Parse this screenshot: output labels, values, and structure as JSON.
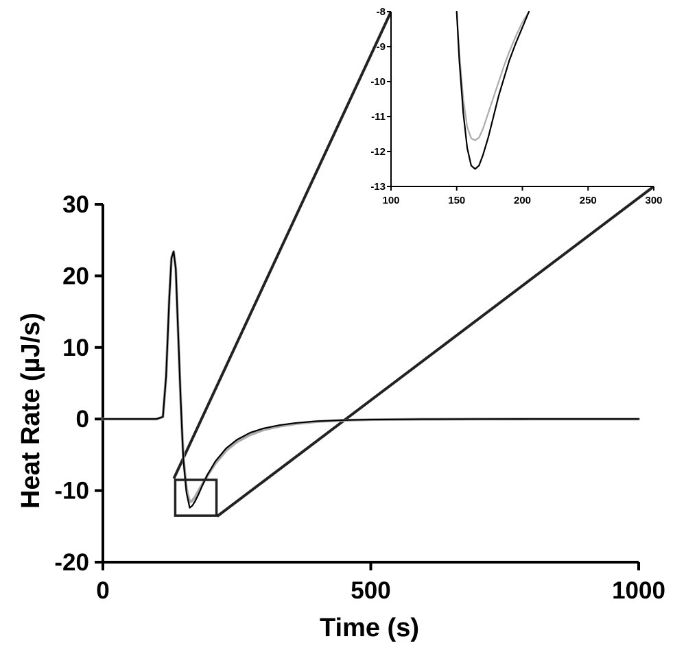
{
  "chart_data": [
    {
      "id": "main",
      "type": "line",
      "title": "",
      "xlabel": "Time (s)",
      "ylabel": "Heat Rate (µJ/s)",
      "xlim": [
        0,
        1000
      ],
      "ylim": [
        -20,
        30
      ],
      "xticks": [
        0,
        500,
        1000
      ],
      "xtick_labels": [
        "0",
        "500",
        "1000"
      ],
      "yticks": [
        -20,
        -10,
        0,
        10,
        20,
        30
      ],
      "ytick_labels": [
        "-20",
        "-10",
        "0",
        "10",
        "20",
        "30"
      ],
      "grid": false,
      "legend": "none",
      "series": [
        {
          "name": "black trace",
          "color": "#000000",
          "x": [
            0,
            100,
            112,
            118,
            124,
            128,
            132,
            136,
            140,
            145,
            150,
            156,
            162,
            167,
            172,
            178,
            185,
            195,
            210,
            230,
            250,
            275,
            300,
            330,
            360,
            400,
            450,
            500,
            600,
            700,
            800,
            900,
            1000
          ],
          "y": [
            0,
            0,
            0.3,
            6,
            17,
            22.5,
            23.4,
            21,
            13,
            3,
            -5.5,
            -10.3,
            -12.4,
            -12.1,
            -11.5,
            -10.6,
            -9.4,
            -7.8,
            -5.9,
            -4.1,
            -2.9,
            -1.9,
            -1.3,
            -0.85,
            -0.55,
            -0.3,
            -0.15,
            -0.08,
            -0.03,
            -0.01,
            0,
            0,
            0
          ]
        },
        {
          "name": "grey trace",
          "color": "#aaaaaa",
          "x": [
            0,
            100,
            112,
            118,
            124,
            128,
            132,
            136,
            140,
            145,
            150,
            156,
            162,
            167,
            172,
            178,
            185,
            195,
            210,
            230,
            250,
            275,
            300,
            330,
            360,
            400,
            450,
            500,
            600,
            700,
            800,
            900,
            1000
          ],
          "y": [
            0,
            0,
            0.3,
            6,
            17,
            22.5,
            23.4,
            21,
            13,
            3,
            -5.3,
            -9.8,
            -11.6,
            -11.4,
            -10.9,
            -10.1,
            -9.2,
            -7.9,
            -6.2,
            -4.4,
            -3.2,
            -2.2,
            -1.5,
            -1.0,
            -0.65,
            -0.35,
            -0.18,
            -0.09,
            -0.03,
            -0.01,
            0,
            0,
            0
          ]
        }
      ],
      "zoom_region": {
        "x": [
          135,
          212
        ],
        "y": [
          -13.5,
          -8.5
        ]
      }
    },
    {
      "id": "inset",
      "type": "line",
      "title": "",
      "xlabel": "",
      "ylabel": "",
      "xlim": [
        100,
        300
      ],
      "ylim": [
        -13,
        -8
      ],
      "xticks": [
        100,
        150,
        200,
        250,
        300
      ],
      "xtick_labels": [
        "100",
        "150",
        "200",
        "250",
        "300"
      ],
      "yticks": [
        -13,
        -12,
        -11,
        -10,
        -9,
        -8
      ],
      "ytick_labels": [
        "-13",
        "-12",
        "-11",
        "-10",
        "-9",
        "-8"
      ],
      "grid": false,
      "legend": "none",
      "series": [
        {
          "name": "black trace",
          "color": "#000000",
          "x": [
            150,
            152,
            155,
            158,
            161,
            164,
            167,
            170,
            174,
            178,
            182,
            186,
            190,
            195,
            200,
            205
          ],
          "y": [
            -8,
            -9.4,
            -10.9,
            -11.9,
            -12.4,
            -12.5,
            -12.4,
            -12.1,
            -11.6,
            -11.0,
            -10.4,
            -9.9,
            -9.4,
            -8.9,
            -8.45,
            -8
          ]
        },
        {
          "name": "grey trace",
          "color": "#aaaaaa",
          "x": [
            150,
            152,
            155,
            158,
            161,
            164,
            167,
            170,
            174,
            178,
            182,
            186,
            190,
            195,
            200,
            205
          ],
          "y": [
            -8,
            -9.2,
            -10.5,
            -11.3,
            -11.62,
            -11.68,
            -11.6,
            -11.35,
            -10.9,
            -10.45,
            -10.0,
            -9.55,
            -9.15,
            -8.7,
            -8.3,
            -8
          ]
        }
      ]
    }
  ]
}
